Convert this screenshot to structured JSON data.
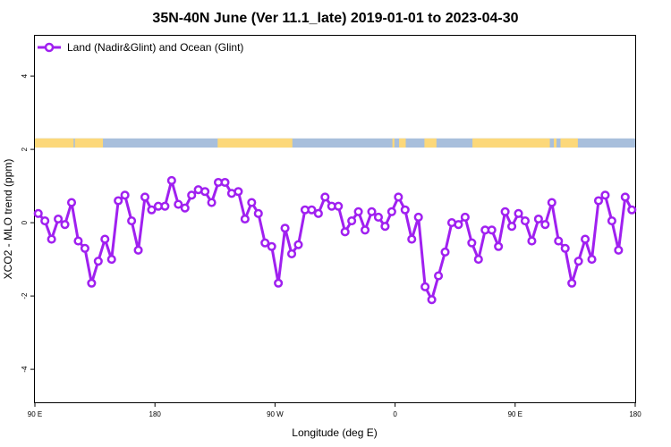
{
  "chart_data": {
    "type": "line",
    "title": "35N-40N June (Ver 11.1_late)   2019-01-01 to 2023-04-30",
    "xlabel": "Longitude (deg E)",
    "ylabel": "XCO2 - MLO trend (ppm)",
    "xlim": [
      90,
      540
    ],
    "ylim": [
      -4.9,
      5.1
    ],
    "x_ticks": [
      {
        "value": 90,
        "label": "90 E"
      },
      {
        "value": 180,
        "label": "180"
      },
      {
        "value": 270,
        "label": "90 W"
      },
      {
        "value": 360,
        "label": "0"
      },
      {
        "value": 450,
        "label": "90 E"
      },
      {
        "value": 540,
        "label": "180"
      }
    ],
    "y_ticks": [
      {
        "value": -4,
        "label": "-4"
      },
      {
        "value": -2,
        "label": "-2"
      },
      {
        "value": 0,
        "label": "0"
      },
      {
        "value": 2,
        "label": "2"
      },
      {
        "value": 4,
        "label": "4"
      }
    ],
    "grid": false,
    "legend_position": "top-left",
    "land_ocean_strip": {
      "y_range": [
        2.05,
        2.3
      ],
      "ocean_color": "#a8bfdc",
      "land_color": "#fcd87a",
      "land_segments": [
        [
          90,
          119
        ],
        [
          120,
          141
        ],
        [
          227,
          283
        ],
        [
          358,
          359.5
        ],
        [
          363,
          368
        ],
        [
          382,
          391
        ],
        [
          418,
          476
        ],
        [
          479,
          481
        ],
        [
          484,
          497
        ]
      ]
    },
    "series": [
      {
        "name": "Land (Nadir&Glint) and Ocean (Glint)",
        "color": "#a020f0",
        "x": [
          92.5,
          97.5,
          102.5,
          107.5,
          112.5,
          117.5,
          122.5,
          127.5,
          132.5,
          137.5,
          142.5,
          147.5,
          152.5,
          157.5,
          162.5,
          167.5,
          172.5,
          177.5,
          182.5,
          187.5,
          192.5,
          197.5,
          202.5,
          207.5,
          212.5,
          217.5,
          222.5,
          227.5,
          232.5,
          237.5,
          242.5,
          247.5,
          252.5,
          257.5,
          262.5,
          267.5,
          272.5,
          277.5,
          282.5,
          287.5,
          292.5,
          297.5,
          302.5,
          307.5,
          312.5,
          317.5,
          322.5,
          327.5,
          332.5,
          337.5,
          342.5,
          347.5,
          352.5,
          357.5,
          362.5,
          367.5,
          372.5,
          377.5,
          382.5,
          387.5,
          392.5,
          397.5,
          402.5,
          407.5,
          412.5,
          417.5,
          422.5,
          427.5,
          432.5,
          437.5,
          442.5,
          447.5,
          452.5,
          457.5,
          462.5,
          467.5,
          472.5,
          477.5,
          482.5,
          487.5,
          492.5,
          497.5,
          502.5,
          507.5,
          512.5,
          517.5,
          522.5,
          527.5,
          532.5,
          537.5
        ],
        "values": [
          0.25,
          0.05,
          -0.45,
          0.1,
          -0.05,
          0.55,
          -0.5,
          -0.7,
          -1.65,
          -1.05,
          -0.45,
          -1.0,
          0.6,
          0.75,
          0.05,
          -0.75,
          0.7,
          0.35,
          0.45,
          0.45,
          1.15,
          0.5,
          0.4,
          0.75,
          0.9,
          0.85,
          0.55,
          1.1,
          1.1,
          0.8,
          0.85,
          0.1,
          0.55,
          0.25,
          -0.55,
          -0.65,
          -1.65,
          -0.15,
          -0.85,
          -0.6,
          0.35,
          0.35,
          0.25,
          0.7,
          0.45,
          0.45,
          -0.25,
          0.05,
          0.3,
          -0.2,
          0.3,
          0.15,
          -0.1,
          0.3,
          0.7,
          0.35,
          -0.45,
          0.15,
          -1.75,
          -2.1,
          -1.45,
          -0.8,
          0.0,
          -0.05,
          0.15,
          -0.55,
          -1.0,
          -0.2,
          -0.2,
          -0.65,
          0.3,
          -0.1,
          0.25,
          0.05,
          -0.5,
          0.1,
          -0.05,
          0.55,
          -0.5,
          -0.7,
          -1.65,
          -1.05,
          -0.45,
          -1.0,
          0.6,
          0.75,
          0.05,
          -0.75,
          0.7,
          0.35
        ]
      }
    ]
  }
}
